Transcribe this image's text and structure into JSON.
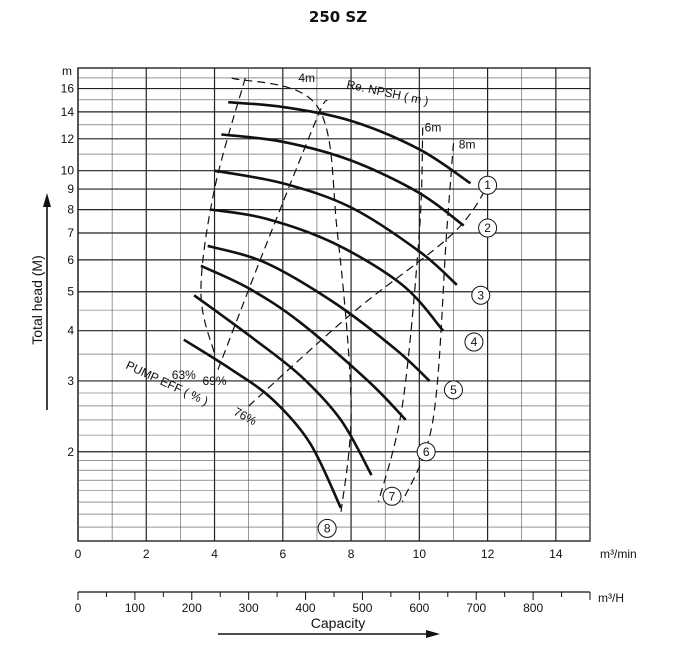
{
  "chart_data": {
    "type": "line",
    "title": "250 SZ",
    "xlabel": "Capacity",
    "ylabel": "Total head (M)",
    "x_unit": "m³/min",
    "x2_unit": "m³/H",
    "y_unit": "m",
    "xlim": [
      0,
      15
    ],
    "x2lim": [
      0,
      900
    ],
    "ylim": [
      1.2,
      18
    ],
    "y_scale": "log",
    "grid": true,
    "x_ticks": [
      0,
      2,
      4,
      6,
      8,
      10,
      12,
      14
    ],
    "x2_ticks": [
      0,
      100,
      200,
      300,
      400,
      500,
      600,
      700,
      800
    ],
    "y_ticks": [
      2,
      3,
      4,
      5,
      6,
      7,
      8,
      9,
      10,
      12,
      14,
      16
    ],
    "series": [
      {
        "name": "1",
        "points": [
          [
            4.4,
            14.8
          ],
          [
            6.0,
            14.4
          ],
          [
            8.0,
            13.3
          ],
          [
            10.0,
            11.3
          ],
          [
            11.5,
            9.3
          ]
        ]
      },
      {
        "name": "2",
        "points": [
          [
            4.2,
            12.3
          ],
          [
            6.0,
            11.8
          ],
          [
            8.0,
            10.6
          ],
          [
            10.0,
            8.8
          ],
          [
            11.3,
            7.3
          ]
        ]
      },
      {
        "name": "3",
        "points": [
          [
            4.0,
            10.0
          ],
          [
            6.0,
            9.3
          ],
          [
            8.0,
            8.1
          ],
          [
            10.0,
            6.3
          ],
          [
            11.1,
            5.2
          ]
        ]
      },
      {
        "name": "4",
        "points": [
          [
            3.9,
            8.0
          ],
          [
            5.5,
            7.6
          ],
          [
            7.5,
            6.6
          ],
          [
            9.5,
            5.2
          ],
          [
            10.7,
            4.0
          ]
        ]
      },
      {
        "name": "5",
        "points": [
          [
            3.8,
            6.5
          ],
          [
            5.5,
            5.9
          ],
          [
            7.5,
            4.7
          ],
          [
            9.3,
            3.6
          ],
          [
            10.3,
            3.0
          ]
        ]
      },
      {
        "name": "6",
        "points": [
          [
            3.6,
            5.8
          ],
          [
            5.0,
            5.1
          ],
          [
            6.5,
            4.2
          ],
          [
            8.5,
            3.0
          ],
          [
            9.6,
            2.4
          ]
        ]
      },
      {
        "name": "7",
        "points": [
          [
            3.4,
            4.9
          ],
          [
            5.0,
            3.9
          ],
          [
            6.5,
            3.1
          ],
          [
            7.7,
            2.4
          ],
          [
            8.6,
            1.75
          ]
        ]
      },
      {
        "name": "8",
        "points": [
          [
            3.1,
            3.8
          ],
          [
            4.5,
            3.2
          ],
          [
            5.7,
            2.7
          ],
          [
            6.8,
            2.1
          ],
          [
            7.7,
            1.45
          ]
        ]
      }
    ],
    "npsh_lines": [
      {
        "label": "4m",
        "points": [
          [
            4.5,
            17.0
          ],
          [
            7.0,
            14.5
          ],
          [
            7.6,
            7.0
          ],
          [
            8.0,
            2.6
          ],
          [
            7.7,
            1.4
          ]
        ]
      },
      {
        "label": "6m",
        "points": [
          [
            10.1,
            12.8
          ],
          [
            10.0,
            7.0
          ],
          [
            9.5,
            2.6
          ],
          [
            8.8,
            1.5
          ]
        ]
      },
      {
        "label": "8m",
        "points": [
          [
            11.0,
            11.7
          ],
          [
            10.8,
            7.0
          ],
          [
            10.4,
            2.4
          ],
          [
            9.5,
            1.5
          ]
        ]
      }
    ],
    "efficiency_lines": [
      {
        "label": "63%",
        "points": [
          [
            4.9,
            17.0
          ],
          [
            4.0,
            9.0
          ],
          [
            3.6,
            5.0
          ],
          [
            4.0,
            3.5
          ]
        ]
      },
      {
        "label": "69%",
        "points": [
          [
            4.1,
            3.2
          ],
          [
            5.5,
            6.5
          ],
          [
            7.0,
            13.5
          ],
          [
            7.3,
            15.0
          ]
        ]
      },
      {
        "label": "76%",
        "points": [
          [
            5.0,
            2.6
          ],
          [
            8.0,
            4.4
          ],
          [
            11.0,
            7.0
          ],
          [
            12.1,
            9.5
          ]
        ]
      }
    ],
    "annotations": {
      "npsh_title": "Re. NPSH ( m )",
      "eff_title": "PUMP EFF ( % )"
    }
  }
}
